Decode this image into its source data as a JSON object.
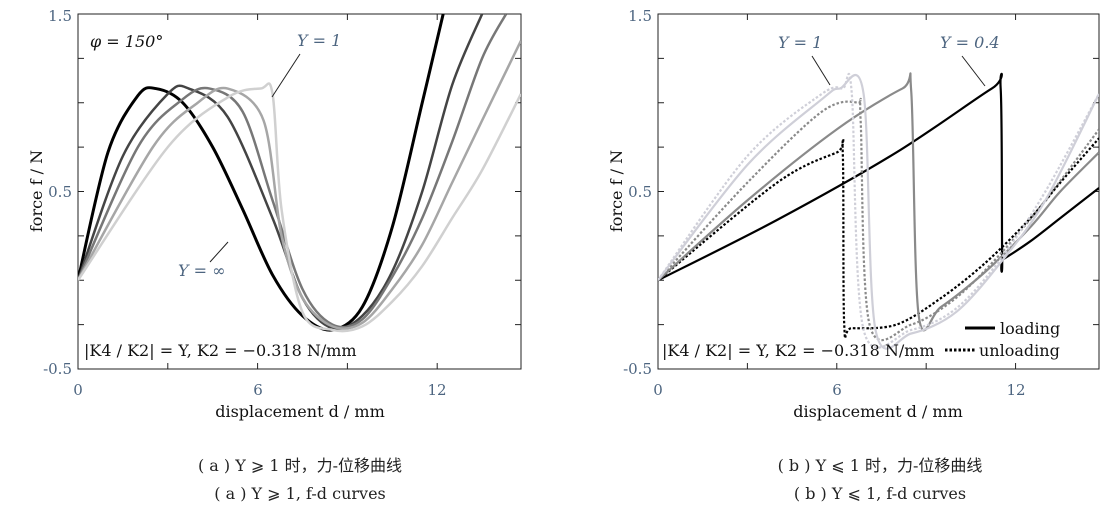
{
  "chart_data": [
    {
      "type": "line",
      "panel": "(a)",
      "xlabel": "displacement d / mm",
      "ylabel": "force f / N",
      "xlim": [
        0,
        14.8
      ],
      "ylim": [
        -0.5,
        1.5
      ],
      "xticks": [
        "0",
        "6",
        "12"
      ],
      "yticks": [
        "-0.5",
        "0.5",
        "1.5"
      ],
      "grid": false,
      "annotations": {
        "phi": "φ = 150°",
        "y_one": "Y = 1",
        "y_inf": "Y = ∞",
        "formula": "|K4 / K2| = Y, K2 = −0.318 N/mm"
      },
      "series": [
        {
          "name": "Y = ∞",
          "color": "#000000",
          "x": [
            0,
            1,
            2,
            2.6,
            3.5,
            4.5,
            5.5,
            6.5,
            7.5,
            8.5,
            9.5,
            10.5,
            11.5,
            12.2
          ],
          "y": [
            0,
            0.72,
            1.04,
            1.08,
            1.0,
            0.75,
            0.4,
            0.03,
            -0.2,
            -0.28,
            -0.15,
            0.3,
            1.0,
            1.5
          ]
        },
        {
          "x": [
            0,
            1.5,
            3,
            3.7,
            5,
            6.5,
            7.5,
            8.5,
            9.5,
            10.5,
            11.5,
            12.5,
            13.5
          ],
          "y": [
            0,
            0.7,
            1.05,
            1.08,
            0.92,
            0.35,
            -0.1,
            -0.27,
            -0.2,
            0.05,
            0.5,
            1.1,
            1.5
          ],
          "color": "#444444"
        },
        {
          "x": [
            0,
            2,
            3.5,
            4.4,
            5.5,
            6.5,
            7.5,
            8.5,
            9.5,
            10.5,
            11.5,
            12.5,
            13.5,
            14.3
          ],
          "y": [
            0,
            0.75,
            1.02,
            1.08,
            0.95,
            0.45,
            -0.05,
            -0.25,
            -0.22,
            0.02,
            0.35,
            0.78,
            1.25,
            1.5
          ],
          "color": "#777777"
        },
        {
          "x": [
            0,
            2.5,
            4,
            5,
            6.2,
            6.8,
            7.5,
            8.5,
            9.5,
            10.5,
            11.5,
            12.5,
            13.5,
            14.8
          ],
          "y": [
            0,
            0.75,
            1.0,
            1.08,
            0.9,
            0.25,
            -0.1,
            -0.26,
            -0.24,
            -0.05,
            0.2,
            0.55,
            0.9,
            1.35
          ],
          "color": "#a6a6a6"
        },
        {
          "name": "Y = 1",
          "color": "#d0d0d0",
          "x": [
            0,
            3,
            5,
            6.1,
            6.5,
            6.8,
            7.5,
            8.5,
            9.5,
            10.5,
            11.5,
            12.5,
            13.5,
            14.8
          ],
          "y": [
            0,
            0.75,
            1.03,
            1.08,
            1.05,
            0.4,
            -0.18,
            -0.28,
            -0.26,
            -0.12,
            0.08,
            0.35,
            0.62,
            1.05
          ]
        }
      ]
    },
    {
      "type": "line",
      "panel": "(b)",
      "xlabel": "displacement d / mm",
      "ylabel": "force f / N",
      "xlim": [
        0,
        14.8
      ],
      "ylim": [
        -0.5,
        1.5
      ],
      "xticks": [
        "0",
        "6",
        "12"
      ],
      "yticks": [
        "-0.5",
        "0.5",
        "1.5"
      ],
      "grid": false,
      "annotations": {
        "y_one": "Y = 1",
        "y_04": "Y = 0.4",
        "formula": "|K4 / K2| = Y, K2 = −0.318 N/mm"
      },
      "legend": {
        "position": "bottom-right",
        "entries": [
          "loading",
          "unloading"
        ]
      },
      "series": [
        {
          "name": "Y = 0.4",
          "style": "loading",
          "color": "#000000",
          "x": [
            0,
            4,
            8,
            11.2,
            11.5,
            11.55,
            11.6,
            12.5,
            13.5,
            14.8
          ],
          "y": [
            0,
            0.34,
            0.72,
            1.08,
            1.08,
            0.12,
            0.12,
            0.22,
            0.35,
            0.52
          ]
        },
        {
          "style": "unloading",
          "color": "#000000",
          "x": [
            0,
            4,
            6,
            6.2,
            6.25,
            6.5,
            8,
            9.5,
            11,
            12.5,
            13.5,
            14.8
          ],
          "y": [
            0,
            0.55,
            0.72,
            0.72,
            -0.25,
            -0.27,
            -0.25,
            -0.1,
            0.1,
            0.35,
            0.55,
            0.8
          ]
        },
        {
          "style": "loading",
          "color": "#8a8a8a",
          "x": [
            0,
            3,
            6,
            8.2,
            8.5,
            8.75,
            9.5,
            11,
            12.5,
            13.5,
            14.8
          ],
          "y": [
            0,
            0.45,
            0.85,
            1.08,
            1.06,
            -0.2,
            -0.15,
            0.05,
            0.3,
            0.5,
            0.72
          ]
        },
        {
          "style": "unloading",
          "color": "#8a8a8a",
          "x": [
            0,
            3,
            5.5,
            6.7,
            6.8,
            7.1,
            8.5,
            10,
            11.5,
            13,
            14.8
          ],
          "y": [
            0,
            0.55,
            0.95,
            1.0,
            0.9,
            -0.25,
            -0.25,
            -0.1,
            0.15,
            0.45,
            0.85
          ]
        },
        {
          "name": "Y = 1",
          "style": "loading",
          "color": "#cfcfd8",
          "x": [
            0,
            3,
            5.5,
            6.1,
            6.9,
            7.3,
            8.5,
            10,
            11.5,
            13,
            14.8
          ],
          "y": [
            0,
            0.65,
            1.02,
            1.08,
            1.05,
            -0.28,
            -0.3,
            -0.18,
            0.1,
            0.45,
            1.05
          ]
        },
        {
          "style": "unloading",
          "color": "#cfcfd8",
          "x": [
            0,
            3,
            5.5,
            6.2,
            6.5,
            6.9,
            8.5,
            10,
            11.5,
            13,
            14.8
          ],
          "y": [
            0,
            0.7,
            1.05,
            1.08,
            1.06,
            -0.28,
            -0.28,
            -0.16,
            0.12,
            0.5,
            1.05
          ]
        }
      ]
    }
  ],
  "captions": {
    "a_cn": "( a ) Y ⩾ 1 时，力-位移曲线",
    "a_en": "( a ) Y ⩾ 1, f-d curves",
    "b_cn": "( b ) Y ⩽ 1 时，力-位移曲线",
    "b_en": "( b ) Y ⩽ 1, f-d curves"
  },
  "legend": {
    "loading": "loading",
    "unloading": "unloading"
  }
}
